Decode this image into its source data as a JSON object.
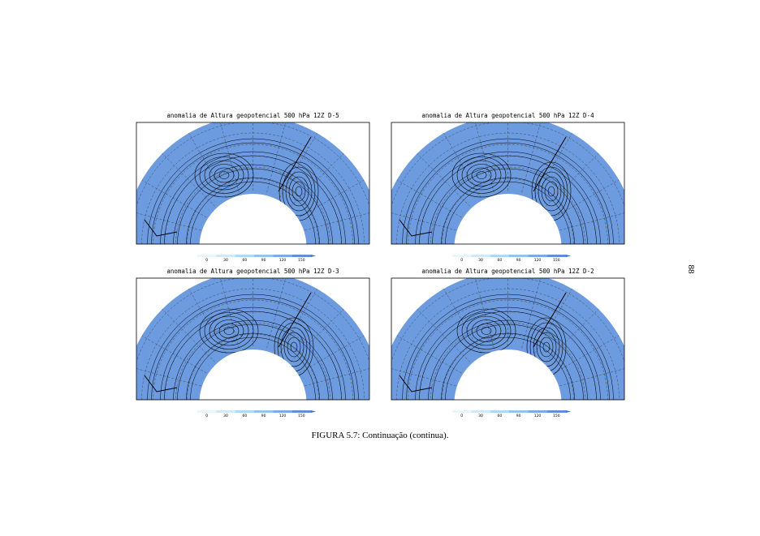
{
  "panels": [
    {
      "title": "anomalia de Altura geopotencial 500 hPa 12Z D-5",
      "colorbar": [
        0,
        30,
        60,
        90,
        120,
        150
      ]
    },
    {
      "title": "anomalia de Altura geopotencial 500 hPa 12Z D-4",
      "colorbar": [
        0,
        30,
        60,
        90,
        120,
        150
      ]
    },
    {
      "title": "anomalia de Altura geopotencial 500 hPa 12Z D-3",
      "colorbar": [
        0,
        30,
        60,
        90,
        120,
        150
      ]
    },
    {
      "title": "anomalia de Altura geopotencial 500 hPa 12Z D-2",
      "colorbar": [
        0,
        30,
        60,
        90,
        120,
        150
      ]
    }
  ],
  "caption": "FIGURA 5.7: Continuação (continua).",
  "page_number": "88"
}
